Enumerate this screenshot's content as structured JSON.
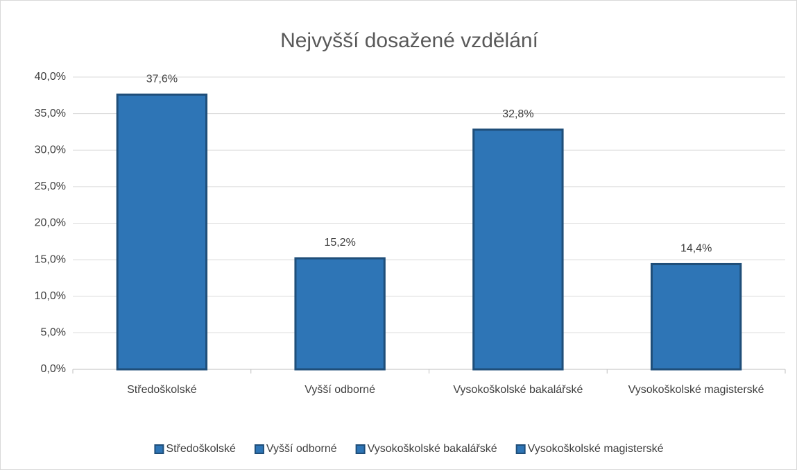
{
  "chart_data": {
    "type": "bar",
    "title": "Nejvyšší dosažené vzdělání",
    "categories": [
      "Středoškolské",
      "Vyšší odborné",
      "Vysokoškolské bakalářské",
      "Vysokoškolské magisterské"
    ],
    "values": [
      37.6,
      15.2,
      32.8,
      14.4
    ],
    "value_labels": [
      "37,6%",
      "15,2%",
      "32,8%",
      "14,4%"
    ],
    "color": "#2e75b6",
    "edge_color": "#1f4e79",
    "ylim": [
      0,
      40
    ],
    "yticks": [
      {
        "value": 0,
        "label": "0,0%"
      },
      {
        "value": 5,
        "label": "5,0%"
      },
      {
        "value": 10,
        "label": "10,0%"
      },
      {
        "value": 15,
        "label": "15,0%"
      },
      {
        "value": 20,
        "label": "20,0%"
      },
      {
        "value": 25,
        "label": "25,0%"
      },
      {
        "value": 30,
        "label": "30,0%"
      },
      {
        "value": 35,
        "label": "35,0%"
      },
      {
        "value": 40,
        "label": "40,0%"
      }
    ],
    "grid": true,
    "legend": "bottom"
  }
}
